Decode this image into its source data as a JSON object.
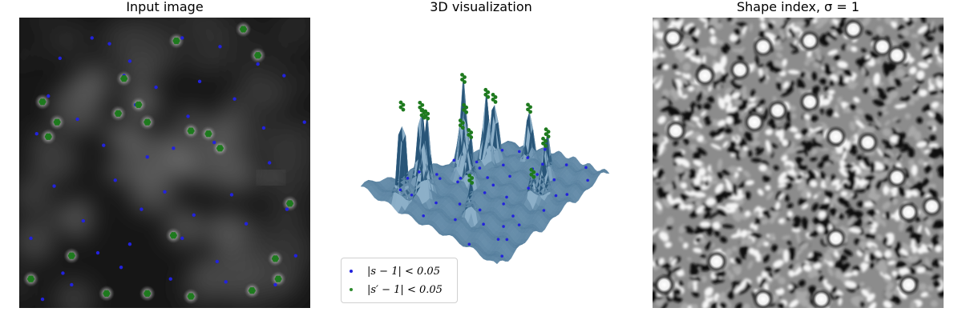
{
  "panels": {
    "input": {
      "title": "Input image"
    },
    "surface": {
      "title": "3D visualization"
    },
    "shape_index": {
      "title": "Shape index, σ = 1"
    }
  },
  "legend": {
    "items": [
      {
        "label": "|s − 1| < 0.05",
        "color": "#2222dd"
      },
      {
        "label": "|s′ − 1| < 0.05",
        "color": "#2e8b2e"
      }
    ]
  },
  "colors": {
    "blue_points": "#2222dd",
    "green_points": "#1e7a1e",
    "surface": "#4a7fa6",
    "surface_dark": "#2f5f84"
  },
  "chart_data": [
    {
      "type": "scatter",
      "title": "Input image",
      "xlim": [
        0,
        100
      ],
      "ylim": [
        0,
        100
      ],
      "background": "grayscale fluorescence image",
      "series": [
        {
          "name": "|s − 1| < 0.05",
          "color": "#2222dd",
          "points": [
            [
              25,
              7
            ],
            [
              31,
              9
            ],
            [
              38,
              15
            ],
            [
              56,
              7
            ],
            [
              69,
              10
            ],
            [
              82,
              16
            ],
            [
              14,
              14
            ],
            [
              40,
              30
            ],
            [
              58,
              34
            ],
            [
              91,
              20
            ],
            [
              6,
              40
            ],
            [
              20,
              35
            ],
            [
              44,
              48
            ],
            [
              67,
              43
            ],
            [
              98,
              36
            ],
            [
              12,
              58
            ],
            [
              33,
              56
            ],
            [
              50,
              60
            ],
            [
              73,
              61
            ],
            [
              86,
              50
            ],
            [
              4,
              76
            ],
            [
              22,
              70
            ],
            [
              38,
              78
            ],
            [
              56,
              76
            ],
            [
              78,
              71
            ],
            [
              92,
              66
            ],
            [
              15,
              88
            ],
            [
              35,
              86
            ],
            [
              52,
              90
            ],
            [
              68,
              84
            ],
            [
              88,
              92
            ],
            [
              8,
              97
            ],
            [
              47,
              24
            ],
            [
              62,
              22
            ],
            [
              29,
              44
            ],
            [
              74,
              28
            ],
            [
              95,
              82
            ],
            [
              18,
              92
            ],
            [
              60,
              68
            ],
            [
              42,
              66
            ],
            [
              84,
              38
            ],
            [
              10,
              27
            ],
            [
              27,
              81
            ],
            [
              71,
              91
            ],
            [
              53,
              45
            ],
            [
              36,
              20
            ]
          ]
        },
        {
          "name": "|s′ − 1| < 0.05",
          "color": "#1e7a1e",
          "points": [
            [
              54,
              8
            ],
            [
              77,
              4
            ],
            [
              82,
              13
            ],
            [
              36,
              21
            ],
            [
              8,
              29
            ],
            [
              41,
              30
            ],
            [
              59,
              39
            ],
            [
              34,
              33
            ],
            [
              44,
              36
            ],
            [
              65,
              40
            ],
            [
              10,
              41
            ],
            [
              69,
              45
            ],
            [
              4,
              90
            ],
            [
              89,
              90
            ],
            [
              93,
              64
            ],
            [
              88,
              83
            ],
            [
              18,
              82
            ],
            [
              53,
              75
            ],
            [
              30,
              95
            ],
            [
              44,
              95
            ],
            [
              59,
              96
            ],
            [
              80,
              94
            ],
            [
              13,
              36
            ]
          ]
        }
      ]
    },
    {
      "type": "surface",
      "title": "3D visualization",
      "peaks": [
        [
          6,
          24
        ],
        [
          17,
          28
        ],
        [
          25,
          22
        ],
        [
          29,
          13
        ],
        [
          47,
          32
        ],
        [
          51,
          20
        ],
        [
          55,
          18
        ],
        [
          60,
          10
        ],
        [
          70,
          18
        ],
        [
          78,
          14
        ],
        [
          88,
          34
        ],
        [
          22,
          60
        ],
        [
          56,
          76
        ],
        [
          62,
          80
        ],
        [
          80,
          62
        ]
      ]
    },
    {
      "type": "heatmap",
      "title": "Shape index, σ = 1",
      "colormap": "gray",
      "bright_spots": [
        [
          7,
          7
        ],
        [
          18,
          20
        ],
        [
          30,
          18
        ],
        [
          38,
          10
        ],
        [
          54,
          8
        ],
        [
          69,
          4
        ],
        [
          79,
          10
        ],
        [
          84,
          13
        ],
        [
          35,
          36
        ],
        [
          43,
          32
        ],
        [
          54,
          29
        ],
        [
          63,
          41
        ],
        [
          8,
          39
        ],
        [
          74,
          43
        ],
        [
          22,
          84
        ],
        [
          63,
          76
        ],
        [
          4,
          92
        ],
        [
          38,
          97
        ],
        [
          58,
          97
        ],
        [
          88,
          92
        ],
        [
          96,
          65
        ],
        [
          88,
          67
        ],
        [
          84,
          55
        ]
      ]
    }
  ]
}
